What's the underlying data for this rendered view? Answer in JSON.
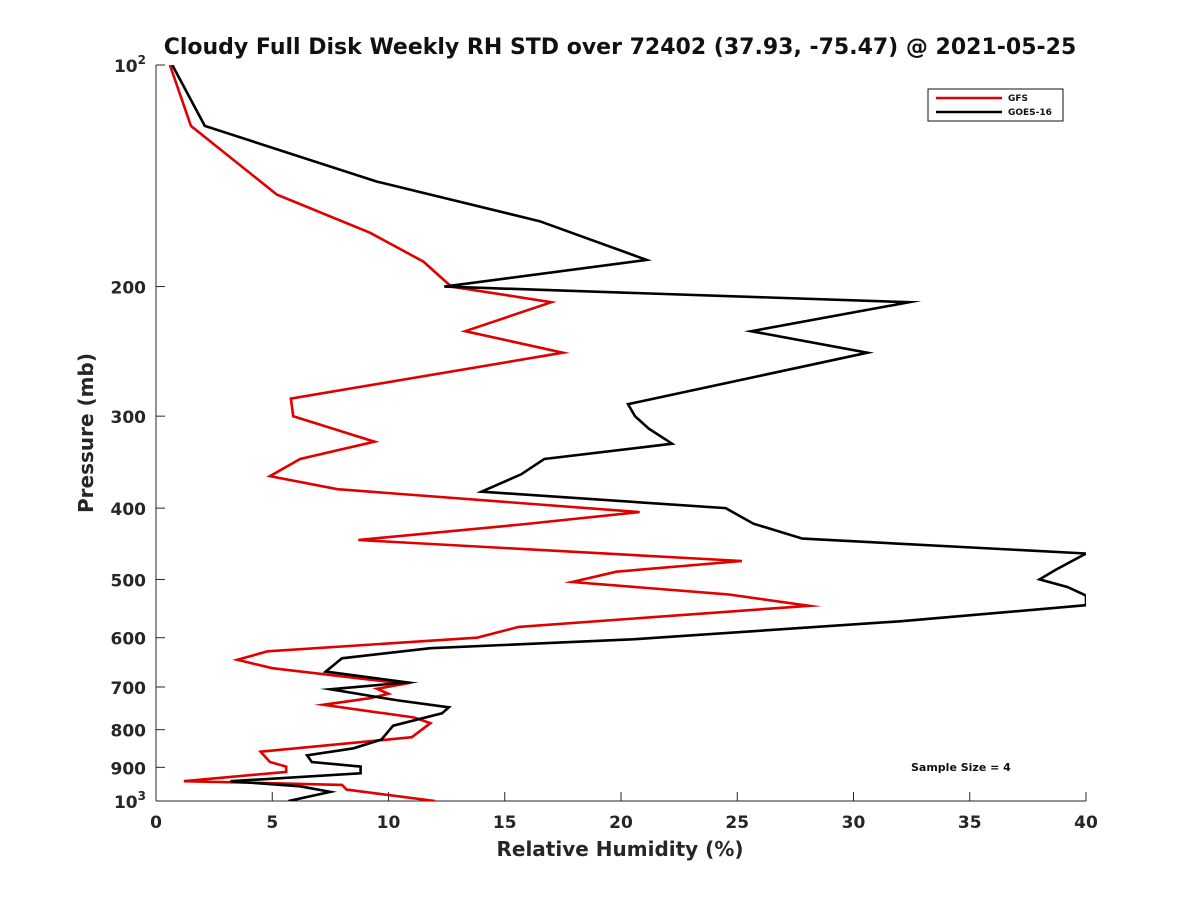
{
  "chart_data": {
    "type": "line",
    "title": "Cloudy Full Disk Weekly RH STD over 72402 (37.93, -75.47) @ 2021-05-25",
    "xlabel": "Relative Humidity (%)",
    "ylabel": "Pressure (mb)",
    "xlim": [
      0,
      40
    ],
    "ylim": [
      100,
      1000
    ],
    "yscale": "log",
    "y_reversed": true,
    "grid": false,
    "legend_position": "top-right",
    "x_ticks": [
      0,
      5,
      10,
      15,
      20,
      25,
      30,
      35,
      40
    ],
    "x_tick_labels": [
      "0",
      "5",
      "10",
      "15",
      "20",
      "25",
      "30",
      "35",
      "40"
    ],
    "y_ticks": [
      100,
      200,
      300,
      400,
      500,
      600,
      700,
      800,
      900,
      1000
    ],
    "y_tick_labels": [
      {
        "base": "10",
        "exp": "2"
      },
      {
        "base": "200",
        "exp": ""
      },
      {
        "base": "300",
        "exp": ""
      },
      {
        "base": "400",
        "exp": ""
      },
      {
        "base": "500",
        "exp": ""
      },
      {
        "base": "600",
        "exp": ""
      },
      {
        "base": "700",
        "exp": ""
      },
      {
        "base": "800",
        "exp": ""
      },
      {
        "base": "900",
        "exp": ""
      },
      {
        "base": "10",
        "exp": "3"
      }
    ],
    "annotation": "Sample Size = 4",
    "series": [
      {
        "name": "GFS",
        "color": "#e00000",
        "points": [
          [
            0.6,
            100
          ],
          [
            1.5,
            121
          ],
          [
            5.2,
            150
          ],
          [
            9.2,
            169
          ],
          [
            11.5,
            185
          ],
          [
            12.7,
            200
          ],
          [
            17.0,
            210
          ],
          [
            13.3,
            230
          ],
          [
            17.5,
            246
          ],
          [
            5.8,
            284
          ],
          [
            5.9,
            300
          ],
          [
            9.4,
            325
          ],
          [
            6.2,
            343
          ],
          [
            4.9,
            362
          ],
          [
            7.8,
            377
          ],
          [
            20.8,
            405
          ],
          [
            15.7,
            421
          ],
          [
            8.7,
            442
          ],
          [
            25.2,
            472
          ],
          [
            19.8,
            488
          ],
          [
            17.9,
            504
          ],
          [
            24.6,
            524
          ],
          [
            28.1,
            543
          ],
          [
            15.6,
            580
          ],
          [
            13.8,
            600
          ],
          [
            4.8,
            626
          ],
          [
            3.5,
            643
          ],
          [
            5.0,
            660
          ],
          [
            10.7,
            693
          ],
          [
            9.5,
            704
          ],
          [
            10.0,
            715
          ],
          [
            9.2,
            725
          ],
          [
            7.2,
            740
          ],
          [
            11.1,
            770
          ],
          [
            11.8,
            784
          ],
          [
            11.0,
            819
          ],
          [
            4.5,
            857
          ],
          [
            4.9,
            885
          ],
          [
            5.6,
            898
          ],
          [
            5.6,
            913
          ],
          [
            1.2,
            940
          ],
          [
            8.0,
            951
          ],
          [
            8.2,
            965
          ],
          [
            12.0,
            1000
          ]
        ]
      },
      {
        "name": "GOES-16",
        "color": "#000000",
        "points": [
          [
            0.7,
            100
          ],
          [
            2.1,
            121
          ],
          [
            9.5,
            144
          ],
          [
            16.5,
            163
          ],
          [
            21.1,
            184
          ],
          [
            12.4,
            200
          ],
          [
            32.4,
            210
          ],
          [
            25.6,
            230
          ],
          [
            30.6,
            246
          ],
          [
            20.3,
            289
          ],
          [
            20.6,
            300
          ],
          [
            21.2,
            312
          ],
          [
            22.2,
            327
          ],
          [
            16.7,
            343
          ],
          [
            15.7,
            360
          ],
          [
            14.0,
            380
          ],
          [
            24.5,
            400
          ],
          [
            25.7,
            420
          ],
          [
            27.8,
            440
          ],
          [
            40.0,
            461
          ],
          [
            38.7,
            485
          ],
          [
            38.0,
            500
          ],
          [
            39.2,
            512
          ],
          [
            40.0,
            526
          ],
          [
            40.0,
            542
          ],
          [
            32.0,
            570
          ],
          [
            20.5,
            603
          ],
          [
            11.8,
            620
          ],
          [
            8.0,
            640
          ],
          [
            7.3,
            667
          ],
          [
            10.8,
            690
          ],
          [
            7.5,
            705
          ],
          [
            10.4,
            730
          ],
          [
            12.6,
            746
          ],
          [
            12.3,
            760
          ],
          [
            10.2,
            790
          ],
          [
            9.7,
            825
          ],
          [
            8.5,
            848
          ],
          [
            6.5,
            867
          ],
          [
            6.7,
            885
          ],
          [
            8.8,
            898
          ],
          [
            8.8,
            917
          ],
          [
            3.2,
            940
          ],
          [
            6.2,
            955
          ],
          [
            7.5,
            972
          ],
          [
            5.7,
            1000
          ]
        ]
      }
    ]
  }
}
